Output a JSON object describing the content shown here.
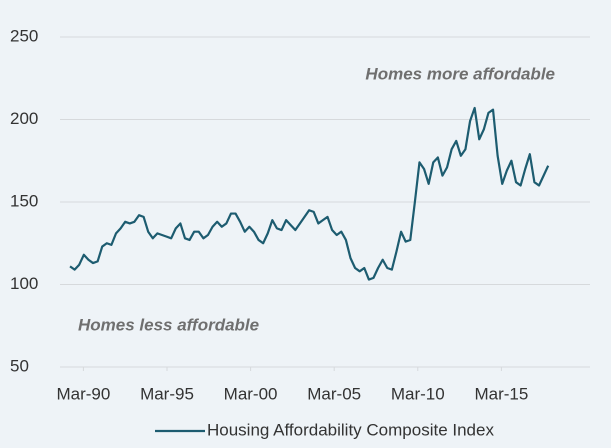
{
  "chart_data": {
    "type": "line",
    "annotations": [
      "Homes more affordable",
      "Homes less affordable"
    ],
    "x": [
      1989.2,
      1989.475,
      1989.75,
      1990.025,
      1990.3,
      1990.575,
      1990.85,
      1991.125,
      1991.4,
      1991.675,
      1991.95,
      1992.225,
      1992.5,
      1992.775,
      1993.05,
      1993.325,
      1993.6,
      1993.875,
      1994.15,
      1994.425,
      1994.7,
      1994.975,
      1995.25,
      1995.525,
      1995.8,
      1996.075,
      1996.35,
      1996.625,
      1996.9,
      1997.175,
      1997.45,
      1997.725,
      1998.0,
      1998.275,
      1998.55,
      1998.825,
      1999.1,
      1999.375,
      1999.65,
      1999.925,
      2000.2,
      2000.475,
      2000.75,
      2001.025,
      2001.3,
      2001.575,
      2001.85,
      2002.125,
      2002.4,
      2002.675,
      2002.95,
      2003.225,
      2003.5,
      2003.775,
      2004.05,
      2004.325,
      2004.6,
      2004.875,
      2005.15,
      2005.425,
      2005.7,
      2005.975,
      2006.25,
      2006.525,
      2006.8,
      2007.075,
      2007.35,
      2007.625,
      2007.9,
      2008.175,
      2008.45,
      2008.725,
      2009.0,
      2009.275,
      2009.55,
      2009.825,
      2010.1,
      2010.375,
      2010.65,
      2010.925,
      2011.2,
      2011.475,
      2011.75,
      2012.025,
      2012.3,
      2012.575,
      2012.85,
      2013.125,
      2013.4,
      2013.675,
      2013.95,
      2014.225,
      2014.5,
      2014.775,
      2015.05,
      2015.325,
      2015.6,
      2015.875,
      2016.15,
      2016.425,
      2016.7,
      2016.975,
      2017.25,
      2017.525,
      2017.8
    ],
    "series": [
      {
        "name": "Housing Affordability Composite Index",
        "color": "#1d5c70",
        "values": [
          111,
          109,
          112,
          118,
          115,
          113,
          114,
          123,
          125,
          124,
          131,
          134,
          138,
          137,
          138,
          142,
          141,
          132,
          128,
          131,
          130,
          129,
          128,
          134,
          137,
          128,
          127,
          132,
          132,
          128,
          130,
          135,
          138,
          135,
          137,
          143,
          143,
          138,
          132,
          135,
          132,
          127,
          125,
          131,
          139,
          134,
          133,
          139,
          136,
          133,
          137,
          141,
          145,
          144,
          137,
          139,
          141,
          133,
          130,
          132,
          127,
          116,
          110,
          108,
          110,
          103,
          104,
          110,
          115,
          110,
          109,
          120,
          132,
          126,
          127,
          150,
          174,
          170,
          161,
          174,
          177,
          166,
          171,
          182,
          187,
          178,
          182,
          199,
          207,
          188,
          194,
          204,
          206,
          178,
          161,
          169,
          175,
          162,
          160,
          170,
          179,
          162,
          160,
          166,
          172
        ]
      }
    ],
    "xlim": [
      1988.6,
      2020.3
    ],
    "xticks": [
      {
        "value": 1990,
        "label": "Mar-90"
      },
      {
        "value": 1995,
        "label": "Mar-95"
      },
      {
        "value": 2000,
        "label": "Mar-00"
      },
      {
        "value": 2005,
        "label": "Mar-05"
      },
      {
        "value": 2010,
        "label": "Mar-10"
      },
      {
        "value": 2015,
        "label": "Mar-15"
      }
    ],
    "ylim": [
      50,
      250
    ],
    "yticks": [
      50,
      100,
      150,
      200,
      250
    ],
    "grid": true,
    "legend": "bottom"
  }
}
